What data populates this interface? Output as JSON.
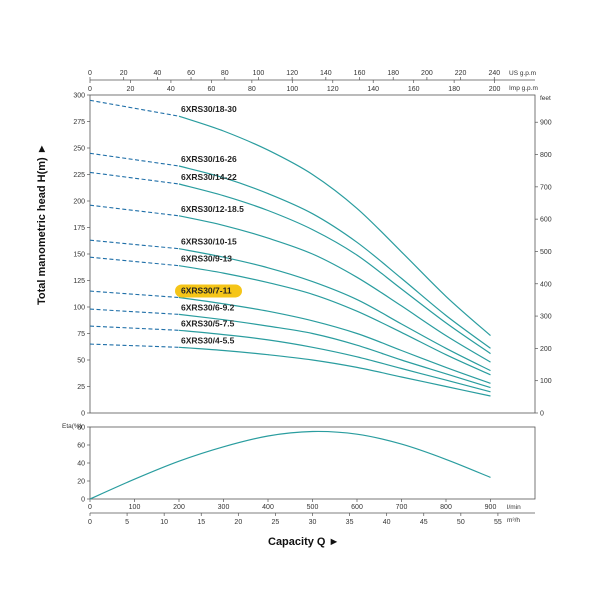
{
  "chart_data": [
    {
      "type": "line",
      "title": "",
      "ylabel": "Total manometric head H(m)",
      "ylabel_arrow": "►",
      "xlabel": "",
      "ylim": [
        0,
        300
      ],
      "y_ticks": [
        0,
        25,
        50,
        75,
        100,
        125,
        150,
        175,
        200,
        225,
        250,
        275,
        300
      ],
      "xlim_lmin": [
        0,
        1000
      ],
      "right_axis": {
        "unit": "feet",
        "ticks": [
          0,
          100,
          200,
          300,
          400,
          500,
          600,
          700,
          800,
          900
        ]
      },
      "top_axis_us": {
        "unit": "US g.p.m",
        "ticks": [
          0,
          20,
          40,
          60,
          80,
          100,
          120,
          140,
          160,
          180,
          200,
          220,
          240
        ]
      },
      "top_axis_imp": {
        "unit": "Imp g.p.m",
        "ticks": [
          0,
          20,
          40,
          60,
          80,
          100,
          120,
          140,
          160,
          180,
          200
        ]
      },
      "dashed_until_lmin": 200,
      "highlight_color": "#f5c518",
      "line_color": "#2a9d9f",
      "series": [
        {
          "name": "6XRS30/18-30",
          "x": [
            0,
            200,
            300,
            400,
            500,
            600,
            700,
            800,
            900
          ],
          "values": [
            295,
            280,
            266,
            248,
            225,
            193,
            152,
            110,
            73
          ],
          "highlight": false
        },
        {
          "name": "6XRS30/16-26",
          "x": [
            0,
            200,
            300,
            400,
            500,
            600,
            700,
            800,
            900
          ],
          "values": [
            245,
            233,
            222,
            207,
            188,
            161,
            127,
            92,
            61
          ],
          "highlight": false
        },
        {
          "name": "6XRS30/14-22",
          "x": [
            0,
            200,
            300,
            400,
            500,
            600,
            700,
            800,
            900
          ],
          "values": [
            227,
            216,
            205,
            191,
            173,
            149,
            117,
            85,
            56
          ],
          "highlight": false
        },
        {
          "name": "6XRS30/12-18.5",
          "x": [
            0,
            200,
            300,
            400,
            500,
            600,
            700,
            800,
            900
          ],
          "values": [
            196,
            186,
            177,
            165,
            150,
            128,
            101,
            73,
            48
          ],
          "highlight": false
        },
        {
          "name": "6XRS30/10-15",
          "x": [
            0,
            200,
            300,
            400,
            500,
            600,
            700,
            800,
            900
          ],
          "values": [
            163,
            155,
            147,
            137,
            124,
            107,
            84,
            61,
            40
          ],
          "highlight": false
        },
        {
          "name": "6XRS30/9-13",
          "x": [
            0,
            200,
            300,
            400,
            500,
            600,
            700,
            800,
            900
          ],
          "values": [
            147,
            139,
            132,
            123,
            112,
            96,
            76,
            55,
            36
          ],
          "highlight": false
        },
        {
          "name": "6XRS30/7-11",
          "x": [
            0,
            200,
            300,
            400,
            500,
            600,
            700,
            800,
            900
          ],
          "values": [
            115,
            109,
            103,
            96,
            87,
            75,
            59,
            43,
            28
          ],
          "highlight": true
        },
        {
          "name": "6XRS30/6-9.2",
          "x": [
            0,
            200,
            300,
            400,
            500,
            600,
            700,
            800,
            900
          ],
          "values": [
            98,
            93,
            88,
            82,
            75,
            64,
            50,
            37,
            24
          ],
          "highlight": false
        },
        {
          "name": "6XRS30/5-7.5",
          "x": [
            0,
            200,
            300,
            400,
            500,
            600,
            700,
            800,
            900
          ],
          "values": [
            82,
            78,
            74,
            69,
            62,
            53,
            42,
            31,
            20
          ],
          "highlight": false
        },
        {
          "name": "6XRS30/4-5.5",
          "x": [
            0,
            200,
            300,
            400,
            500,
            600,
            700,
            800,
            900
          ],
          "values": [
            65,
            62,
            59,
            55,
            50,
            43,
            34,
            25,
            16
          ],
          "highlight": false
        }
      ]
    },
    {
      "type": "line",
      "title": "",
      "ylabel": "Eta(%)",
      "xlabel": "Capacity Q",
      "xlabel_arrow": "►",
      "ylim": [
        0,
        80
      ],
      "y_ticks": [
        0,
        20,
        40,
        60,
        80
      ],
      "x_ticks_lmin": [
        0,
        100,
        200,
        300,
        400,
        500,
        600,
        700,
        800,
        900
      ],
      "x_unit_lmin": "l/min",
      "x_ticks_m3h": [
        0,
        5,
        10,
        15,
        20,
        25,
        30,
        35,
        40,
        45,
        50,
        55
      ],
      "x_unit_m3h": "m³/h",
      "series": [
        {
          "name": "Eta",
          "x": [
            0,
            100,
            200,
            300,
            400,
            500,
            600,
            700,
            800,
            900
          ],
          "values": [
            0,
            22,
            42,
            58,
            70,
            75,
            72,
            61,
            44,
            24
          ]
        }
      ]
    }
  ]
}
